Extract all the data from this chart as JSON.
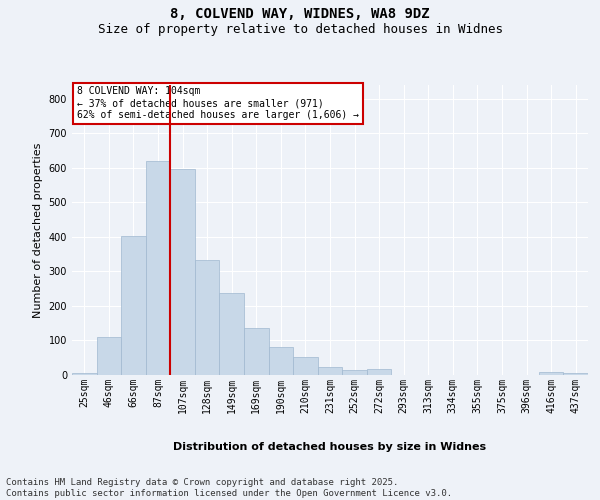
{
  "title_line1": "8, COLVEND WAY, WIDNES, WA8 9DZ",
  "title_line2": "Size of property relative to detached houses in Widnes",
  "xlabel": "Distribution of detached houses by size in Widnes",
  "ylabel": "Number of detached properties",
  "bar_color": "#c8d8e8",
  "bar_edge_color": "#a0b8d0",
  "vline_color": "#cc0000",
  "annotation_text": "8 COLVEND WAY: 104sqm\n← 37% of detached houses are smaller (971)\n62% of semi-detached houses are larger (1,606) →",
  "annotation_box_color": "#cc0000",
  "categories": [
    "25sqm",
    "46sqm",
    "66sqm",
    "87sqm",
    "107sqm",
    "128sqm",
    "149sqm",
    "169sqm",
    "190sqm",
    "210sqm",
    "231sqm",
    "252sqm",
    "272sqm",
    "293sqm",
    "313sqm",
    "334sqm",
    "355sqm",
    "375sqm",
    "396sqm",
    "416sqm",
    "437sqm"
  ],
  "values": [
    5,
    110,
    403,
    620,
    596,
    333,
    237,
    137,
    80,
    53,
    24,
    15,
    18,
    0,
    0,
    0,
    0,
    0,
    0,
    8,
    7
  ],
  "vline_index": 3.5,
  "ylim": [
    0,
    840
  ],
  "yticks": [
    0,
    100,
    200,
    300,
    400,
    500,
    600,
    700,
    800
  ],
  "background_color": "#eef2f8",
  "plot_bg_color": "#eef2f8",
  "footer_text": "Contains HM Land Registry data © Crown copyright and database right 2025.\nContains public sector information licensed under the Open Government Licence v3.0.",
  "title_fontsize": 10,
  "subtitle_fontsize": 9,
  "axis_label_fontsize": 8,
  "tick_fontsize": 7,
  "annotation_fontsize": 7,
  "footer_fontsize": 6.5
}
